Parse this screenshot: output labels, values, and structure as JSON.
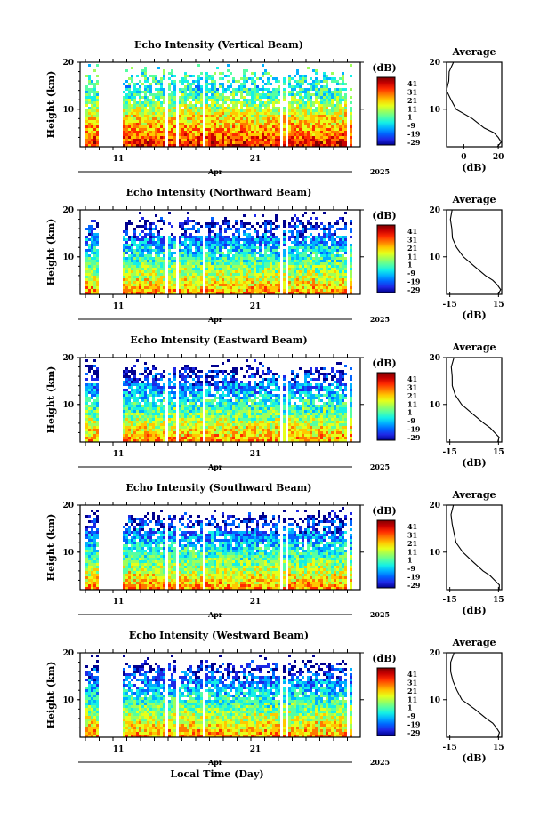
{
  "figure": {
    "xlabel_bottom": "Local Time (Day)",
    "month_label": "Apr",
    "year_label": "2025",
    "colorbar_unit": "(dB)",
    "colorbar_ticks": [
      "41",
      "31",
      "21",
      "11",
      "1",
      "-9",
      "-19",
      "-29"
    ],
    "colorbar_colors": [
      "#7f0000",
      "#c80000",
      "#ff2a00",
      "#ff7800",
      "#ffc800",
      "#e6ff1a",
      "#9dff5a",
      "#55ffa2",
      "#14f0e6",
      "#00b0ff",
      "#0064ff",
      "#1e28e6",
      "#00008f"
    ],
    "average_title": "Average",
    "average_xlabel": "(dB)"
  },
  "chart_data": [
    {
      "type": "heatmap",
      "title": "Echo Intensity (Vertical Beam)",
      "ylabel": "Height (km)",
      "yticks": [
        "20",
        "10"
      ],
      "xticks": [
        "11",
        "21"
      ],
      "ylim": [
        2,
        20
      ],
      "clim": [
        -29,
        41
      ],
      "profile": {
        "xticks": [
          "0",
          "20"
        ],
        "xlim": [
          -10,
          22
        ],
        "heights": [
          2,
          3,
          4,
          5,
          6,
          8,
          10,
          12,
          14,
          16,
          18,
          20
        ],
        "values": [
          20,
          22,
          20,
          17,
          12,
          5,
          -4,
          -8,
          -10,
          -9,
          -8,
          -6
        ]
      }
    },
    {
      "type": "heatmap",
      "title": "Echo Intensity (Northward Beam)",
      "ylabel": "Height (km)",
      "yticks": [
        "20",
        "10"
      ],
      "xticks": [
        "11",
        "21"
      ],
      "ylim": [
        2,
        20
      ],
      "clim": [
        -29,
        41
      ],
      "profile": {
        "xticks": [
          "-15",
          "15"
        ],
        "xlim": [
          -17,
          17
        ],
        "heights": [
          2,
          3,
          4,
          5,
          6,
          8,
          10,
          12,
          14,
          16,
          18,
          20
        ],
        "values": [
          15,
          16,
          14,
          11,
          7,
          0,
          -7,
          -11,
          -13,
          -14,
          -15,
          -14
        ]
      }
    },
    {
      "type": "heatmap",
      "title": "Echo Intensity (Eastward Beam)",
      "ylabel": "Height (km)",
      "yticks": [
        "20",
        "10"
      ],
      "xticks": [
        "11",
        "21"
      ],
      "ylim": [
        2,
        20
      ],
      "clim": [
        -29,
        41
      ],
      "profile": {
        "xticks": [
          "-15",
          "15"
        ],
        "xlim": [
          -17,
          17
        ],
        "heights": [
          2,
          3,
          4,
          5,
          6,
          8,
          10,
          12,
          14,
          16,
          18,
          20
        ],
        "values": [
          15,
          15,
          13,
          10,
          6,
          -1,
          -8,
          -12,
          -13,
          -14,
          -14,
          -13
        ]
      }
    },
    {
      "type": "heatmap",
      "title": "Echo Intensity (Southward Beam)",
      "ylabel": "Height (km)",
      "yticks": [
        "20",
        "10"
      ],
      "xticks": [
        "11",
        "21"
      ],
      "ylim": [
        2,
        20
      ],
      "clim": [
        -29,
        41
      ],
      "profile": {
        "xticks": [
          "-15",
          "15"
        ],
        "xlim": [
          -17,
          17
        ],
        "heights": [
          2,
          3,
          4,
          5,
          6,
          8,
          10,
          12,
          14,
          16,
          18,
          20
        ],
        "values": [
          15,
          15,
          13,
          10,
          6,
          -1,
          -7,
          -11,
          -12,
          -13,
          -14,
          -13
        ]
      }
    },
    {
      "type": "heatmap",
      "title": "Echo Intensity (Westward Beam)",
      "ylabel": "Height (km)",
      "yticks": [
        "20",
        "10"
      ],
      "xticks": [
        "11",
        "21"
      ],
      "ylim": [
        2,
        20
      ],
      "clim": [
        -29,
        41
      ],
      "profile": {
        "xticks": [
          "-15",
          "15"
        ],
        "xlim": [
          -17,
          17
        ],
        "heights": [
          2,
          3,
          4,
          5,
          6,
          8,
          10,
          12,
          14,
          16,
          18,
          20
        ],
        "values": [
          15,
          16,
          14,
          11,
          7,
          0,
          -7,
          -11,
          -13,
          -14,
          -14,
          -13
        ]
      }
    }
  ]
}
